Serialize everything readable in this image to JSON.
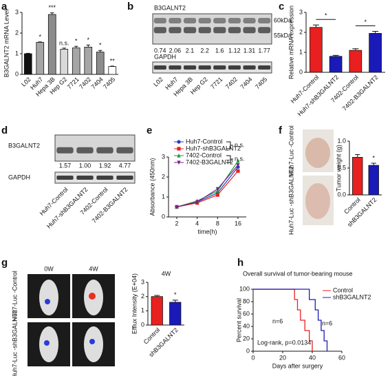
{
  "panel_labels": [
    "a",
    "b",
    "c",
    "d",
    "e",
    "f",
    "g",
    "h"
  ],
  "chart_data": [
    {
      "type": "bar",
      "ylabel": "B3GALNT2 mRNA Level",
      "categories": [
        "L02",
        "Huh7",
        "Hepa 3B",
        "Hep G2",
        "7721",
        "7402",
        "7404",
        "7405"
      ],
      "values": [
        1.0,
        1.55,
        2.9,
        1.22,
        1.28,
        1.32,
        1.08,
        0.38
      ],
      "errors": [
        0.02,
        0.02,
        0.08,
        0.05,
        0.08,
        0.1,
        0.08,
        0.02
      ],
      "colors": [
        "#111111",
        "#a6a6a6",
        "#8c8c8c",
        "#d9d9d9",
        "#a6a6a6",
        "#a6a6a6",
        "#8c8c8c",
        "#ffffff"
      ],
      "annotations": [
        null,
        "*",
        "***",
        "n.s.",
        "*",
        "*",
        "*",
        "**"
      ],
      "ylim": [
        0,
        3
      ],
      "yticks": [
        0,
        1,
        2,
        3
      ]
    },
    {
      "type": "bar",
      "ylabel": "Relative mRNA expression",
      "categories": [
        "Huh7-Control",
        "Huh7-shB3GALNT2",
        "7402-Control",
        "7402-B3GALNT2"
      ],
      "values": [
        2.25,
        0.8,
        1.1,
        1.95
      ],
      "errors": [
        0.12,
        0.05,
        0.08,
        0.1
      ],
      "colors": [
        "#e8201f",
        "#1a1ab8",
        "#e8201f",
        "#1a1ab8"
      ],
      "brackets": [
        "*",
        "*"
      ],
      "ylim": [
        0,
        3
      ],
      "yticks": [
        0,
        1,
        2,
        3
      ]
    },
    {
      "type": "line",
      "xlabel": "time(h)",
      "ylabel": "Absorbance (450nm)",
      "categories": [
        "2",
        "4",
        "8",
        "16"
      ],
      "series": [
        {
          "name": "Huh7-Control",
          "color": "#1f3fbf",
          "marker": "circle",
          "values": [
            0.5,
            0.75,
            1.2,
            2.5
          ]
        },
        {
          "name": "Huh7-shB3GALNT2",
          "color": "#e8201f",
          "marker": "square",
          "values": [
            0.5,
            0.7,
            1.1,
            2.3
          ]
        },
        {
          "name": "7402-Control",
          "color": "#1a9a3a",
          "marker": "triangle",
          "values": [
            0.5,
            0.8,
            1.3,
            2.8
          ]
        },
        {
          "name": "7402-B3GALNT2",
          "color": "#7a1f8a",
          "marker": "triangle-down",
          "values": [
            0.5,
            0.75,
            1.4,
            2.6
          ]
        }
      ],
      "legend_brackets": [
        "n.s.",
        "n.s."
      ],
      "ylim": [
        0,
        3
      ],
      "yticks": [
        0,
        1,
        2,
        3
      ]
    },
    {
      "type": "bar",
      "ylabel": "Tumor weight (g)",
      "categories": [
        "Control",
        "shB3GALNT2"
      ],
      "values": [
        0.7,
        0.55
      ],
      "errors": [
        0.05,
        0.04
      ],
      "colors": [
        "#e8201f",
        "#1a1ab8"
      ],
      "annotations": [
        null,
        "*"
      ],
      "ylim": [
        0,
        1
      ],
      "yticks": [
        {
          "value": 0,
          "label": "0.0"
        },
        {
          "value": 0.5,
          "label": "0.5"
        },
        {
          "value": 1,
          "label": "1.0"
        }
      ]
    },
    {
      "type": "bar",
      "title": "4W",
      "ylabel": "Efflux Intensity (E+04)",
      "categories": [
        "Control",
        "shB3GALNT2"
      ],
      "values": [
        2.0,
        1.6
      ],
      "errors": [
        0.08,
        0.15
      ],
      "colors": [
        "#e8201f",
        "#1a1ab8"
      ],
      "annotations": [
        null,
        "*"
      ],
      "ylim": [
        0,
        3
      ],
      "yticks": [
        0,
        1,
        2,
        3
      ]
    },
    {
      "type": "step",
      "title": "Overall survival of tumor-bearing mouse",
      "xlabel": "Days after surgery",
      "ylabel": "Percent survival",
      "series": [
        {
          "name": "Control",
          "color": "#e8201f",
          "x": [
            0,
            28,
            30,
            32,
            35,
            38,
            40
          ],
          "values": [
            100,
            83.3,
            66.7,
            50,
            33.3,
            16.7,
            0
          ]
        },
        {
          "name": "shB3GALNT2",
          "color": "#1a1ab8",
          "x": [
            0,
            38,
            42,
            44,
            46,
            48,
            50
          ],
          "values": [
            100,
            83.3,
            66.7,
            50,
            33.3,
            16.7,
            0
          ]
        }
      ],
      "annotations": [
        "n=6",
        "n=6",
        "Log-rank, p=0.0134"
      ],
      "xlim": [
        0,
        60
      ],
      "xticks": [
        0,
        20,
        40,
        60
      ],
      "ylim": [
        0,
        100
      ],
      "yticks": [
        0,
        20,
        40,
        60,
        80,
        100
      ]
    }
  ],
  "blots": [
    {
      "target": "B3GALNT2",
      "loading": "GAPDH",
      "markers": [
        "60kDa",
        "55kDa"
      ],
      "quant": [
        "0.74",
        "2.06",
        "2.1",
        "2.2",
        "1.6",
        "1.12",
        "1.31",
        "1.77"
      ],
      "lanes": [
        "L02",
        "Huh7",
        "Hepa 3B",
        "Hep G2",
        "7721",
        "7402",
        "7404",
        "7405"
      ]
    },
    {
      "target": "B3GALNT2",
      "loading": "GAPDH",
      "quant": [
        "1.57",
        "1.00",
        "1.92",
        "4.77"
      ],
      "lanes": [
        "Huh7-Control",
        "Huh7-shB3GALNT2",
        "7402-Control",
        "7402-B3GALNT2"
      ]
    }
  ],
  "images": {
    "f": {
      "row_labels": [
        "Huh7-Luc -Control",
        "Huh7-Luc -shB3GALNT2"
      ]
    },
    "g": {
      "col_labels": [
        "0W",
        "4W"
      ],
      "row_labels": [
        "Huh7-Luc -Control",
        "Huh7-Luc -shB3GALNT2"
      ]
    }
  }
}
